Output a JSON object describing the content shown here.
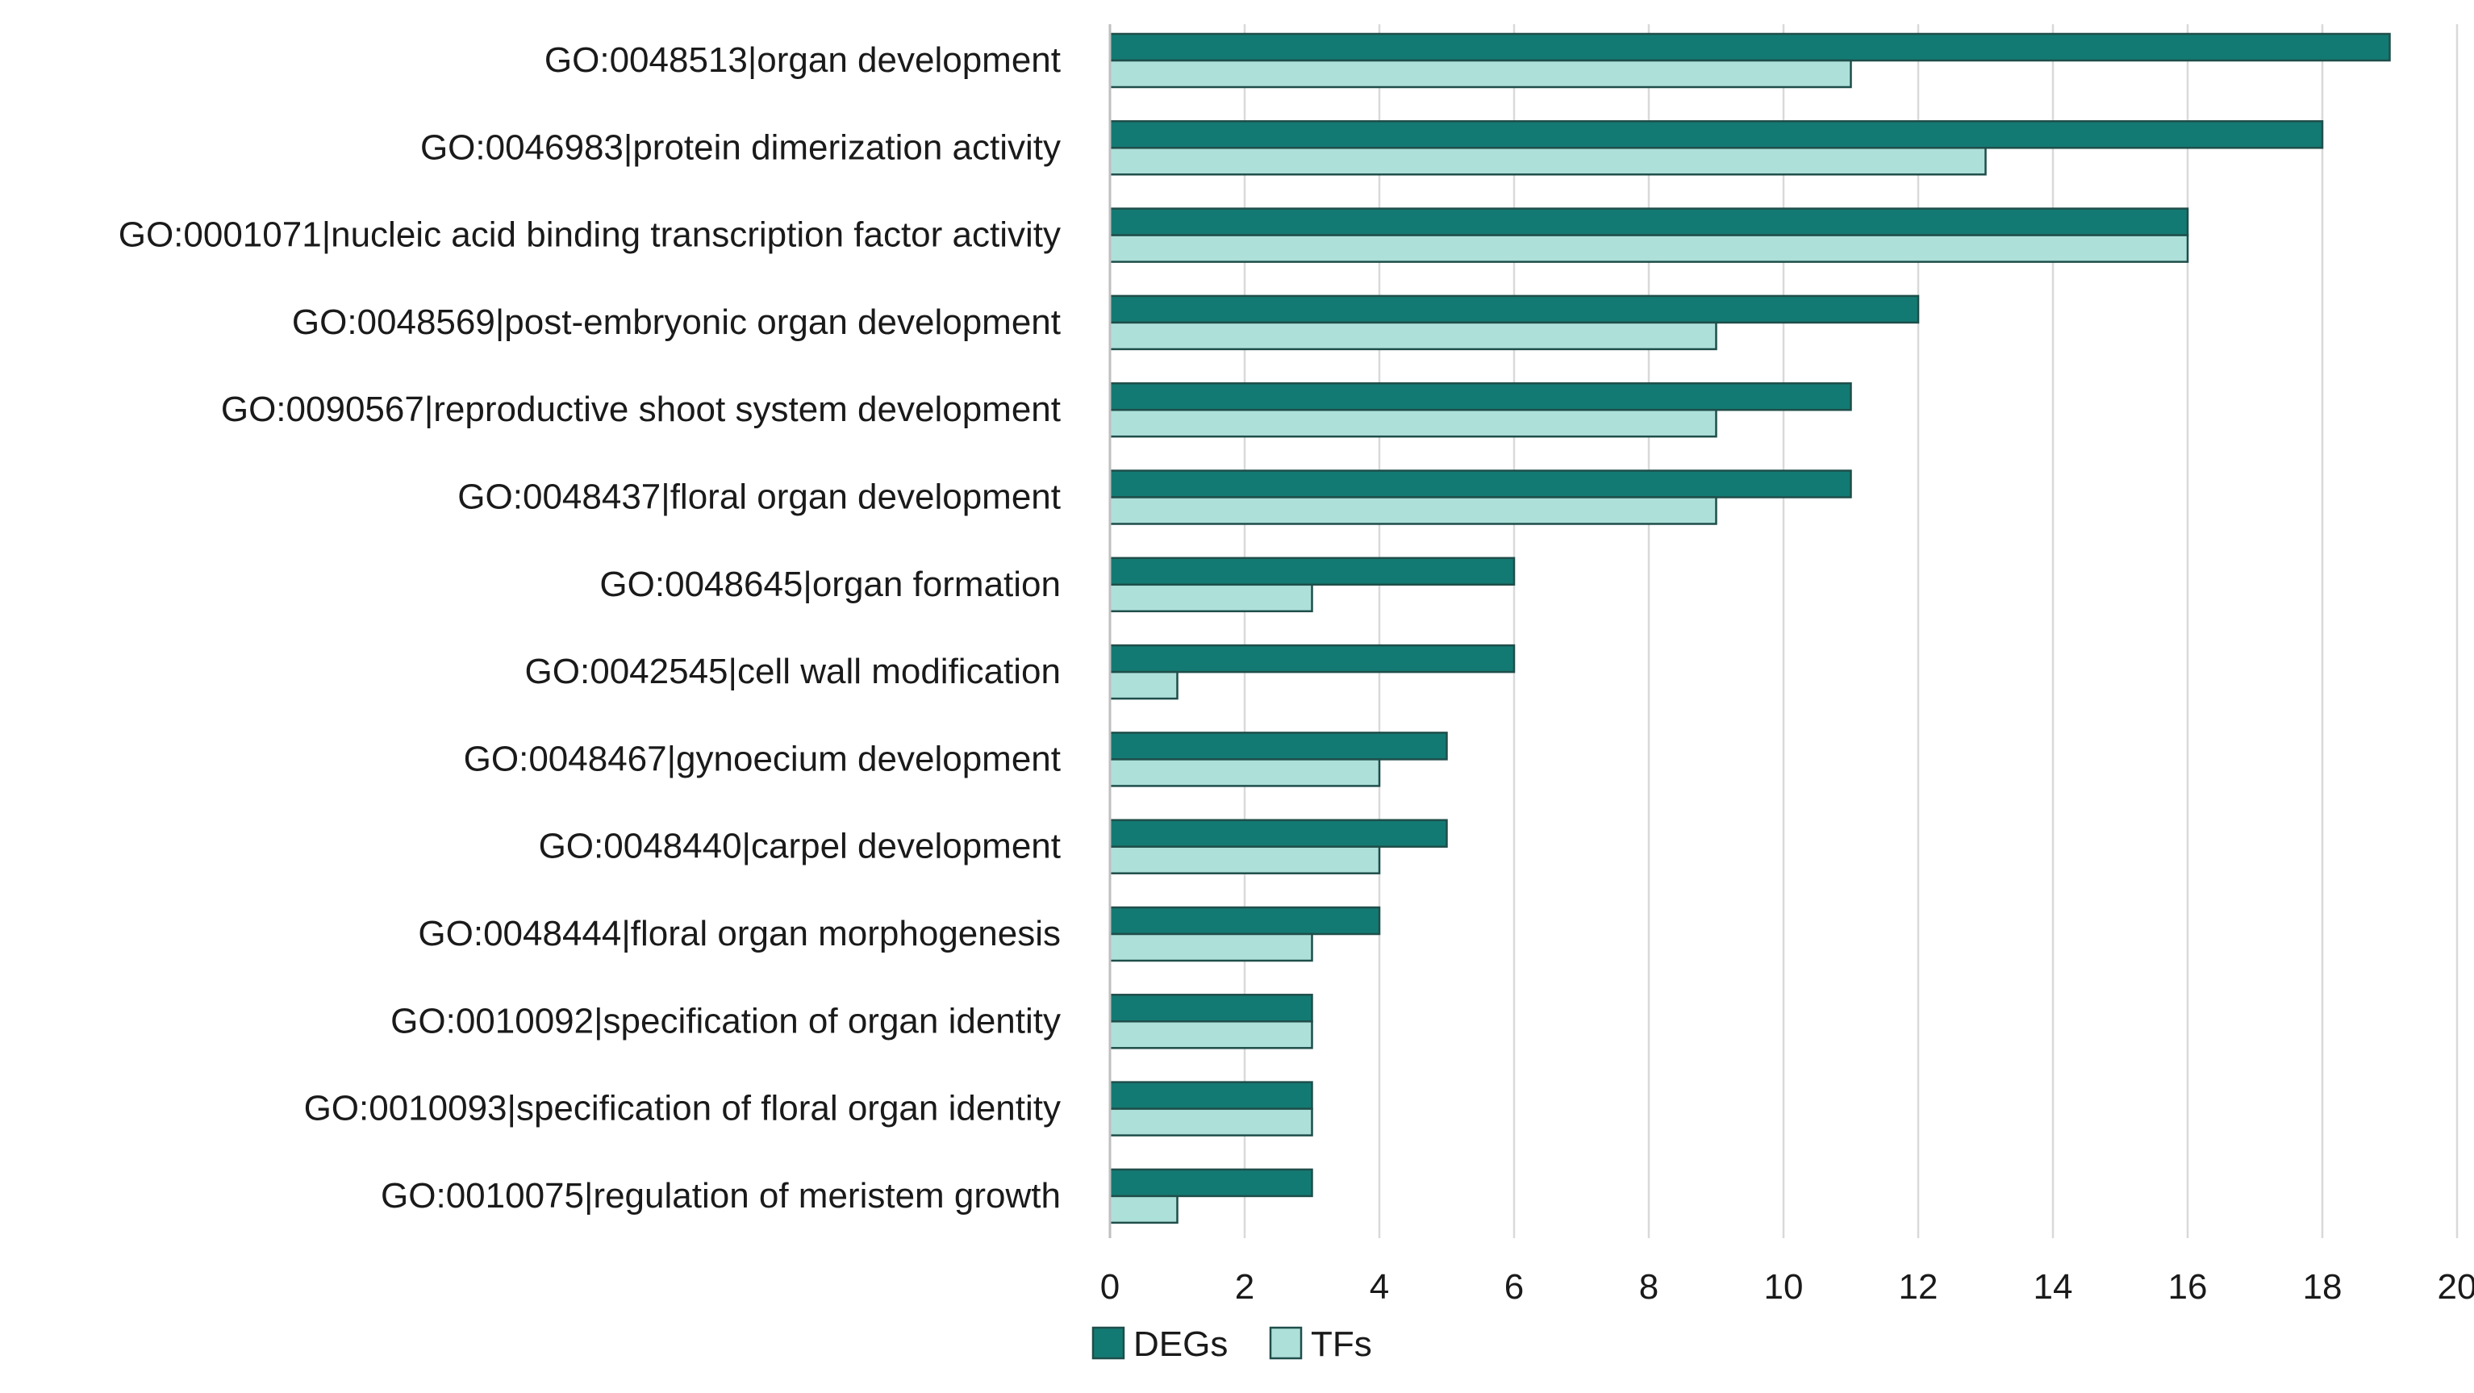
{
  "chart_data": {
    "type": "bar",
    "orientation": "horizontal",
    "title": "",
    "xlabel": "",
    "ylabel": "",
    "xlim": [
      0,
      20
    ],
    "xticks": [
      0,
      2,
      4,
      6,
      8,
      10,
      12,
      14,
      16,
      18,
      20
    ],
    "grid": "vertical",
    "legend_position": "bottom",
    "categories": [
      "GO:0048513|organ development",
      "GO:0046983|protein dimerization activity",
      "GO:0001071|nucleic acid binding transcription factor activity",
      "GO:0048569|post-embryonic organ development",
      "GO:0090567|reproductive shoot system development",
      "GO:0048437|floral organ development",
      "GO:0048645|organ formation",
      "GO:0042545|cell wall modification",
      "GO:0048467|gynoecium development",
      "GO:0048440|carpel development",
      "GO:0048444|floral organ morphogenesis",
      "GO:0010092|specification of organ identity",
      "GO:0010093|specification of floral organ identity",
      "GO:0010075|regulation of meristem growth"
    ],
    "series": [
      {
        "name": "DEGs",
        "color": "#137a73",
        "values": [
          19,
          18,
          16,
          12,
          11,
          11,
          6,
          6,
          5,
          5,
          4,
          3,
          3,
          3
        ]
      },
      {
        "name": "TFs",
        "color": "#aee0da",
        "values": [
          11,
          13,
          16,
          9,
          9,
          9,
          3,
          1,
          4,
          4,
          3,
          3,
          3,
          1
        ]
      }
    ]
  }
}
